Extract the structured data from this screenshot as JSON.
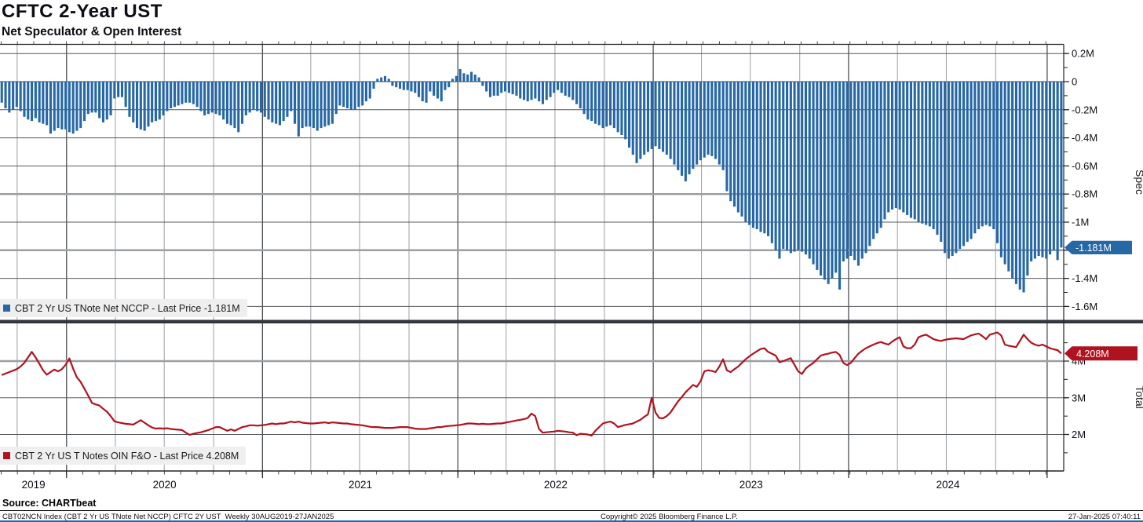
{
  "header": {
    "title": "CFTC 2-Year UST",
    "subtitle": "Net Speculator & Open Interest"
  },
  "panels": {
    "spec": {
      "axis_title": "Spec",
      "legend_label": "CBT 2 Yr US TNote Net NCCP - Last Price -1.181M",
      "last_price_tag": "-1.181M",
      "color": "#2667a6",
      "yticks": [
        {
          "v": 0.2,
          "label": "0.2M"
        },
        {
          "v": 0,
          "label": "0"
        },
        {
          "v": -0.2,
          "label": "-0.2M"
        },
        {
          "v": -0.4,
          "label": "-0.4M"
        },
        {
          "v": -0.6,
          "label": "-0.6M"
        },
        {
          "v": -0.8,
          "label": "-0.8M",
          "major": true
        },
        {
          "v": -1,
          "label": "-1M"
        },
        {
          "v": -1.2,
          "label": "-1.2M",
          "major": true
        },
        {
          "v": -1.4,
          "label": "-1.4M"
        },
        {
          "v": -1.6,
          "label": "-1.6M"
        }
      ]
    },
    "total": {
      "axis_title": "Total",
      "legend_label": "CBT 2 Yr US T Notes OIN F&O - Last Price 4.208M",
      "last_price_tag": "4.208M",
      "color": "#b1121f",
      "yticks": [
        {
          "v": 4,
          "label": "4M",
          "major": true
        },
        {
          "v": 3,
          "label": "3M"
        },
        {
          "v": 2,
          "label": "2M"
        }
      ]
    }
  },
  "x_axis": {
    "years": [
      {
        "label": "2019",
        "week": 8.9
      },
      {
        "label": "2020",
        "week": 43.8
      },
      {
        "label": "2021",
        "week": 95.9
      },
      {
        "label": "2022",
        "week": 147.9
      },
      {
        "label": "2023",
        "week": 199.9
      },
      {
        "label": "2024",
        "week": 252.3
      }
    ],
    "year_boundary_weeks": [
      17.71,
      69.86,
      121.86,
      173.86,
      225.86,
      278.71
    ],
    "quarter_boundary_weeks": [
      4.57,
      17.71,
      30.71,
      43.71,
      56.86,
      69.86,
      82.71,
      95.71,
      108.86,
      121.86,
      134.71,
      147.71,
      160.86,
      173.86,
      186.71,
      199.71,
      212.86,
      225.86,
      238.86,
      251.86,
      265.0,
      278.71
    ]
  },
  "footer": {
    "source": "Source: CHARTbeat",
    "ticker_info": "CBT02NCN Index (CBT 2 Yr US TNote Net NCCP) CFTC 2Y UST  Weekly 30AUG2019-27JAN2025",
    "copyright": "Copyright© 2025 Bloomberg Finance L.P.",
    "datetime": "27-Jan-2025 07:40:11"
  },
  "chart_data": [
    {
      "type": "bar",
      "name": "CBT 2 Yr US TNote Net NCCP (Net Speculator position)",
      "unit": "millions of contracts",
      "frequency": "weekly",
      "x_range": "30AUG2019 - 27JAN2025",
      "ylim": [
        -1.69,
        0.26
      ],
      "last_value": -1.181,
      "values": [
        -0.15,
        -0.19,
        -0.22,
        -0.2,
        -0.18,
        -0.21,
        -0.25,
        -0.27,
        -0.28,
        -0.26,
        -0.29,
        -0.3,
        -0.31,
        -0.37,
        -0.35,
        -0.33,
        -0.34,
        -0.34,
        -0.36,
        -0.37,
        -0.35,
        -0.33,
        -0.28,
        -0.23,
        -0.22,
        -0.22,
        -0.26,
        -0.29,
        -0.27,
        -0.24,
        -0.12,
        -0.11,
        -0.11,
        -0.18,
        -0.25,
        -0.29,
        -0.33,
        -0.34,
        -0.35,
        -0.32,
        -0.29,
        -0.28,
        -0.27,
        -0.24,
        -0.21,
        -0.19,
        -0.18,
        -0.17,
        -0.16,
        -0.15,
        -0.15,
        -0.16,
        -0.18,
        -0.21,
        -0.24,
        -0.23,
        -0.22,
        -0.23,
        -0.24,
        -0.27,
        -0.3,
        -0.31,
        -0.33,
        -0.36,
        -0.3,
        -0.24,
        -0.22,
        -0.2,
        -0.21,
        -0.22,
        -0.25,
        -0.27,
        -0.29,
        -0.3,
        -0.31,
        -0.28,
        -0.25,
        -0.21,
        -0.3,
        -0.39,
        -0.33,
        -0.32,
        -0.32,
        -0.33,
        -0.35,
        -0.33,
        -0.32,
        -0.31,
        -0.3,
        -0.23,
        -0.17,
        -0.18,
        -0.19,
        -0.2,
        -0.2,
        -0.18,
        -0.17,
        -0.14,
        -0.12,
        -0.05,
        0.02,
        0.03,
        0.04,
        0.02,
        -0.03,
        -0.04,
        -0.05,
        -0.06,
        -0.06,
        -0.07,
        -0.08,
        -0.11,
        -0.14,
        -0.15,
        -0.07,
        -0.1,
        -0.12,
        -0.14,
        -0.06,
        -0.04,
        0.02,
        0.04,
        0.09,
        0.06,
        0.05,
        0.07,
        0.05,
        0.03,
        -0.03,
        -0.07,
        -0.11,
        -0.1,
        -0.1,
        -0.08,
        -0.07,
        -0.08,
        -0.09,
        -0.1,
        -0.12,
        -0.13,
        -0.14,
        -0.13,
        -0.12,
        -0.14,
        -0.16,
        -0.13,
        -0.11,
        -0.08,
        -0.06,
        -0.08,
        -0.1,
        -0.11,
        -0.13,
        -0.16,
        -0.19,
        -0.23,
        -0.27,
        -0.28,
        -0.3,
        -0.31,
        -0.33,
        -0.32,
        -0.31,
        -0.33,
        -0.36,
        -0.38,
        -0.41,
        -0.47,
        -0.52,
        -0.58,
        -0.55,
        -0.52,
        -0.5,
        -0.48,
        -0.46,
        -0.48,
        -0.5,
        -0.52,
        -0.55,
        -0.59,
        -0.63,
        -0.67,
        -0.71,
        -0.66,
        -0.62,
        -0.59,
        -0.56,
        -0.54,
        -0.52,
        -0.53,
        -0.55,
        -0.59,
        -0.63,
        -0.78,
        -0.85,
        -0.89,
        -0.93,
        -0.96,
        -1.0,
        -1.02,
        -1.04,
        -1.05,
        -1.07,
        -1.08,
        -1.1,
        -1.15,
        -1.2,
        -1.26,
        -1.19,
        -1.2,
        -1.22,
        -1.21,
        -1.2,
        -1.21,
        -1.23,
        -1.26,
        -1.3,
        -1.34,
        -1.38,
        -1.41,
        -1.44,
        -1.4,
        -1.36,
        -1.48,
        -1.28,
        -1.26,
        -1.24,
        -1.27,
        -1.31,
        -1.26,
        -1.22,
        -1.17,
        -1.12,
        -1.08,
        -1.04,
        -0.98,
        -0.93,
        -0.91,
        -0.9,
        -0.91,
        -0.93,
        -0.95,
        -0.97,
        -0.98,
        -1.0,
        -1.01,
        -1.02,
        -1.03,
        -1.05,
        -1.09,
        -1.14,
        -1.22,
        -1.26,
        -1.24,
        -1.22,
        -1.19,
        -1.17,
        -1.14,
        -1.12,
        -1.08,
        -1.05,
        -1.03,
        -1.02,
        -1.03,
        -1.05,
        -1.15,
        -1.25,
        -1.3,
        -1.35,
        -1.4,
        -1.44,
        -1.48,
        -1.5,
        -1.38,
        -1.28,
        -1.26,
        -1.24,
        -1.25,
        -1.26,
        -1.23,
        -1.2,
        -1.27,
        -1.181
      ]
    },
    {
      "type": "line",
      "name": "CBT 2 Yr US T Notes OIN F&O (Total Open Interest)",
      "unit": "millions of contracts",
      "frequency": "weekly",
      "x_range": "30AUG2019 - 27JAN2025",
      "ylim": [
        1.0,
        5.0
      ],
      "last_value": 4.208,
      "values": [
        3.62,
        3.66,
        3.7,
        3.74,
        3.78,
        3.85,
        3.95,
        4.1,
        4.25,
        4.1,
        3.93,
        3.75,
        3.63,
        3.7,
        3.77,
        3.72,
        3.78,
        3.9,
        4.07,
        3.8,
        3.56,
        3.43,
        3.25,
        3.06,
        2.86,
        2.82,
        2.79,
        2.7,
        2.62,
        2.5,
        2.36,
        2.33,
        2.31,
        2.29,
        2.28,
        2.27,
        2.33,
        2.39,
        2.32,
        2.25,
        2.19,
        2.16,
        2.17,
        2.16,
        2.17,
        2.15,
        2.14,
        2.13,
        2.12,
        2.05,
        1.99,
        2.02,
        2.04,
        2.06,
        2.09,
        2.12,
        2.16,
        2.2,
        2.2,
        2.15,
        2.1,
        2.14,
        2.1,
        2.15,
        2.2,
        2.22,
        2.25,
        2.25,
        2.24,
        2.25,
        2.26,
        2.28,
        2.3,
        2.28,
        2.3,
        2.3,
        2.32,
        2.35,
        2.33,
        2.35,
        2.32,
        2.31,
        2.3,
        2.3,
        2.31,
        2.32,
        2.33,
        2.31,
        2.33,
        2.32,
        2.31,
        2.3,
        2.3,
        2.28,
        2.27,
        2.26,
        2.25,
        2.23,
        2.21,
        2.2,
        2.2,
        2.19,
        2.18,
        2.18,
        2.18,
        2.19,
        2.2,
        2.2,
        2.2,
        2.18,
        2.16,
        2.15,
        2.15,
        2.15,
        2.17,
        2.18,
        2.2,
        2.2,
        2.22,
        2.23,
        2.24,
        2.25,
        2.26,
        2.28,
        2.3,
        2.3,
        2.29,
        2.28,
        2.29,
        2.28,
        2.28,
        2.29,
        2.3,
        2.3,
        2.32,
        2.34,
        2.36,
        2.38,
        2.4,
        2.42,
        2.45,
        2.57,
        2.5,
        2.15,
        2.05,
        2.06,
        2.07,
        2.08,
        2.1,
        2.09,
        2.08,
        2.06,
        2.05,
        1.98,
        2.02,
        2.01,
        2.0,
        1.97,
        2.1,
        2.2,
        2.3,
        2.33,
        2.35,
        2.3,
        2.2,
        2.23,
        2.26,
        2.28,
        2.3,
        2.35,
        2.4,
        2.48,
        2.55,
        3.0,
        2.6,
        2.45,
        2.44,
        2.5,
        2.6,
        2.75,
        2.9,
        3.02,
        3.15,
        3.25,
        3.35,
        3.3,
        3.45,
        3.72,
        3.75,
        3.73,
        3.7,
        3.85,
        4.05,
        3.75,
        3.7,
        3.78,
        3.85,
        3.95,
        4.05,
        4.13,
        4.2,
        4.27,
        4.33,
        4.35,
        4.25,
        4.2,
        4.15,
        3.97,
        4.0,
        4.04,
        4.08,
        3.9,
        3.72,
        3.65,
        3.8,
        3.88,
        3.95,
        4.05,
        4.15,
        4.18,
        4.2,
        4.23,
        4.25,
        4.17,
        3.95,
        3.89,
        3.95,
        4.08,
        4.2,
        4.28,
        4.35,
        4.4,
        4.45,
        4.49,
        4.52,
        4.48,
        4.45,
        4.53,
        4.6,
        4.65,
        4.4,
        4.35,
        4.35,
        4.45,
        4.65,
        4.69,
        4.72,
        4.66,
        4.6,
        4.57,
        4.55,
        4.58,
        4.6,
        4.61,
        4.62,
        4.61,
        4.6,
        4.65,
        4.7,
        4.73,
        4.75,
        4.68,
        4.6,
        4.72,
        4.75,
        4.78,
        4.7,
        4.45,
        4.42,
        4.4,
        4.38,
        4.55,
        4.72,
        4.6,
        4.5,
        4.45,
        4.42,
        4.45,
        4.4,
        4.35,
        4.32,
        4.3,
        4.208
      ]
    }
  ]
}
